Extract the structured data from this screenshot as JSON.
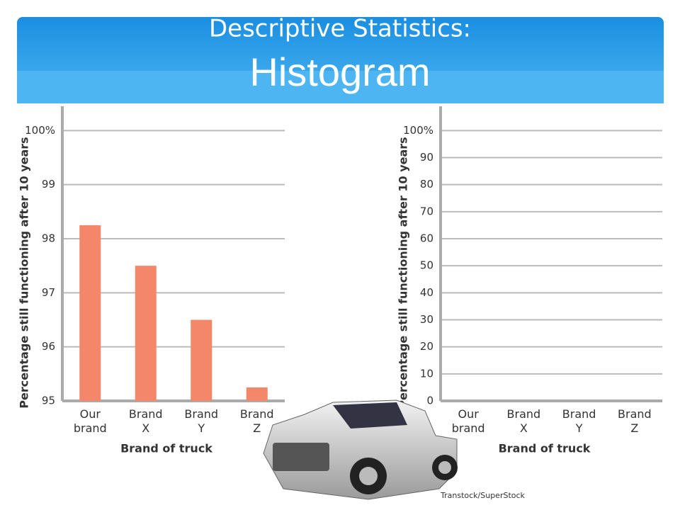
{
  "header": {
    "title": "Descriptive Statistics:",
    "subtitle": "Histogram"
  },
  "credit": "Transtock/SuperStock",
  "chart_data": [
    {
      "type": "bar",
      "y_label": "Percentage still functioning after 10 years",
      "x_label": "Brand of truck",
      "categories": [
        "Our brand",
        "Brand X",
        "Brand Y",
        "Brand Z"
      ],
      "values": [
        98.25,
        97.5,
        96.5,
        95.25
      ],
      "color": "#f4876a",
      "ylim": [
        95,
        100.45
      ],
      "yticks": [
        95,
        96,
        97,
        98,
        99,
        {
          "value": 100,
          "label": "100%"
        }
      ],
      "grid": true
    },
    {
      "type": "bar",
      "y_label": "Percentage still functioning after 10 years",
      "x_label": "Brand of truck",
      "categories": [
        "Our brand",
        "Brand X",
        "Brand Y",
        "Brand Z"
      ],
      "ylim": [
        0,
        109
      ],
      "yticks": [
        0,
        10,
        20,
        30,
        40,
        50,
        60,
        70,
        80,
        90,
        {
          "value": 100,
          "label": "100%"
        }
      ],
      "grid": true
    }
  ]
}
